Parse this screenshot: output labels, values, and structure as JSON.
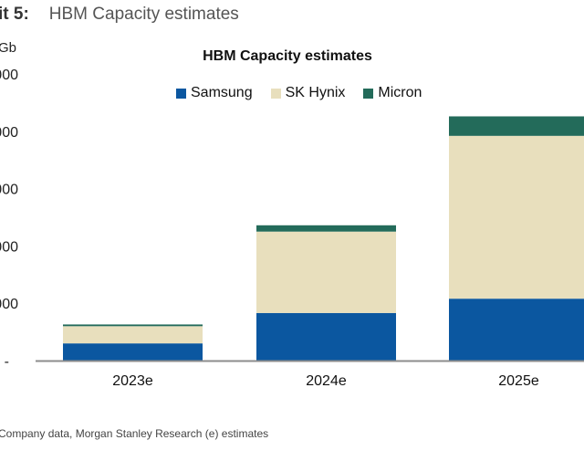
{
  "header": {
    "exhibit_label": "it 5:",
    "exhibit_title": "HBM Capacity estimates"
  },
  "source_text": "Company data, Morgan Stanley Research (e) estimates",
  "chart_data": {
    "type": "bar",
    "stacked": true,
    "title": "HBM Capacity estimates",
    "ylabel": "Gb",
    "xlabel": "",
    "categories": [
      "2023e",
      "2024e",
      "2025e"
    ],
    "value_units": "y-axis tick steps (leading digits of tick labels cropped in image)",
    "ylim": [
      0,
      5
    ],
    "yticks": [
      0,
      1,
      2,
      3,
      4,
      5
    ],
    "ytick_labels": [
      "-",
      "000",
      "000",
      "000",
      "000",
      "000"
    ],
    "grid": false,
    "legend_position": "top-center",
    "series": [
      {
        "name": "Samsung",
        "color": "#0b57a0",
        "values": [
          0.3,
          0.83,
          1.08
        ]
      },
      {
        "name": "SK Hynix",
        "color": "#e8dfbd",
        "values": [
          0.3,
          1.42,
          2.84
        ]
      },
      {
        "name": "Micron",
        "color": "#236b5a",
        "values": [
          0.03,
          0.11,
          0.34
        ]
      }
    ]
  }
}
